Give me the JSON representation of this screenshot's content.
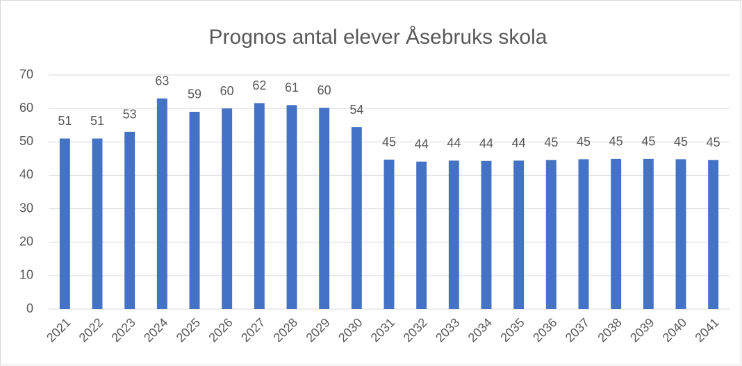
{
  "chart_data": {
    "type": "bar",
    "title": "Prognos antal elever Åsebruks skola",
    "categories": [
      "2021",
      "2022",
      "2023",
      "2024",
      "2025",
      "2026",
      "2027",
      "2028",
      "2029",
      "2030",
      "2031",
      "2032",
      "2033",
      "2034",
      "2035",
      "2036",
      "2037",
      "2038",
      "2039",
      "2040",
      "2041"
    ],
    "values": [
      51,
      51,
      53,
      63,
      59,
      60,
      61.6,
      61,
      60.2,
      54.4,
      44.7,
      44.1,
      44.4,
      44.3,
      44.4,
      44.6,
      44.8,
      44.9,
      44.9,
      44.8,
      44.6
    ],
    "value_labels": [
      "51",
      "51",
      "53",
      "63",
      "59",
      "60",
      "62",
      "61",
      "60",
      "54",
      "45",
      "44",
      "44",
      "44",
      "44",
      "45",
      "45",
      "45",
      "45",
      "45",
      "45"
    ],
    "color": "#4472c4",
    "ylim": [
      0,
      70
    ],
    "yticks": [
      0,
      10,
      20,
      30,
      40,
      50,
      60,
      70
    ],
    "grid": true
  }
}
